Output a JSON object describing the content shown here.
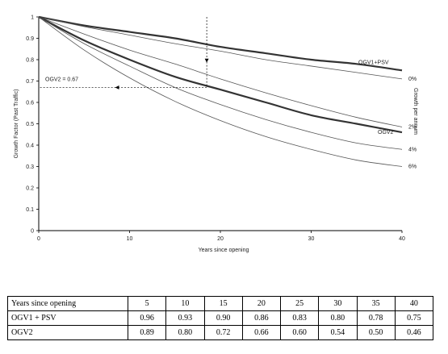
{
  "chart_data": {
    "type": "line",
    "xlabel": "Years since opening",
    "ylabel": "Growth Factor (Past Traffic)",
    "right_axis_label": "Growth per annum",
    "xlim": [
      0,
      40
    ],
    "ylim": [
      0,
      1
    ],
    "x_ticks": [
      "0",
      "10",
      "20",
      "30",
      "40"
    ],
    "y_ticks": [
      "0",
      "0.1",
      "0.2",
      "0.3",
      "0.4",
      "0.5",
      "0.6",
      "0.7",
      "0.8",
      "0.9",
      "1"
    ],
    "grid": false,
    "series": [
      {
        "name": "OGV1+PSV",
        "emphasis": true,
        "x": [
          0,
          5,
          10,
          15,
          20,
          25,
          30,
          35,
          40
        ],
        "y": [
          1,
          0.96,
          0.93,
          0.9,
          0.86,
          0.83,
          0.8,
          0.78,
          0.75
        ]
      },
      {
        "name": "0%",
        "emphasis": false,
        "x": [
          0,
          5,
          10,
          15,
          20,
          25,
          30,
          35,
          40
        ],
        "y": [
          1,
          0.955,
          0.915,
          0.875,
          0.84,
          0.8,
          0.77,
          0.74,
          0.71
        ]
      },
      {
        "name": "2%",
        "emphasis": false,
        "x": [
          0,
          5,
          10,
          15,
          20,
          25,
          30,
          35,
          40
        ],
        "y": [
          1,
          0.92,
          0.845,
          0.78,
          0.71,
          0.645,
          0.585,
          0.53,
          0.485
        ]
      },
      {
        "name": "OGV2",
        "emphasis": true,
        "x": [
          0,
          5,
          10,
          15,
          20,
          25,
          30,
          35,
          40
        ],
        "y": [
          1,
          0.89,
          0.8,
          0.72,
          0.66,
          0.6,
          0.54,
          0.5,
          0.46
        ]
      },
      {
        "name": "4%",
        "emphasis": false,
        "x": [
          0,
          5,
          10,
          15,
          20,
          25,
          30,
          35,
          40
        ],
        "y": [
          1,
          0.875,
          0.77,
          0.67,
          0.59,
          0.52,
          0.46,
          0.41,
          0.38
        ]
      },
      {
        "name": "6%",
        "emphasis": false,
        "x": [
          0,
          5,
          10,
          15,
          20,
          25,
          30,
          35,
          40
        ],
        "y": [
          1,
          0.845,
          0.715,
          0.605,
          0.515,
          0.44,
          0.38,
          0.33,
          0.3
        ]
      }
    ],
    "annotation": {
      "text": "OGV2 = 0.67",
      "x": 18.5,
      "y": 0.67
    }
  },
  "table": {
    "headers": [
      "Years since opening",
      "5",
      "10",
      "15",
      "20",
      "25",
      "30",
      "35",
      "40"
    ],
    "rows": [
      [
        "OGV1 + PSV",
        "0.96",
        "0.93",
        "0.90",
        "0.86",
        "0.83",
        "0.80",
        "0.78",
        "0.75"
      ],
      [
        "OGV2",
        "0.89",
        "0.80",
        "0.72",
        "0.66",
        "0.60",
        "0.54",
        "0.50",
        "0.46"
      ]
    ]
  }
}
